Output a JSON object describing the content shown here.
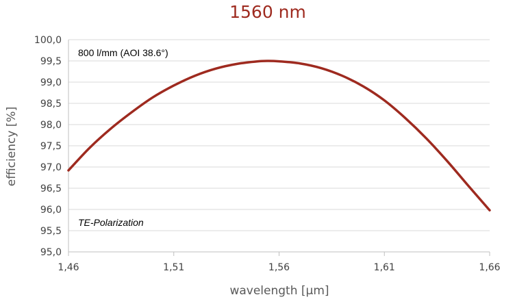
{
  "chart_data": {
    "type": "line",
    "title": "1560 nm",
    "xlabel": "wavelength [µm]",
    "ylabel": "efficiency [%]",
    "xlim": [
      1.46,
      1.66
    ],
    "ylim": [
      95.0,
      100.0
    ],
    "x_ticks": [
      1.46,
      1.51,
      1.56,
      1.61,
      1.66
    ],
    "x_tick_labels": [
      "1,46",
      "1,51",
      "1,56",
      "1,61",
      "1,66"
    ],
    "y_ticks": [
      95.0,
      95.5,
      96.0,
      96.5,
      97.0,
      97.5,
      98.0,
      98.5,
      99.0,
      99.5,
      100.0
    ],
    "y_tick_labels": [
      "95,0",
      "95,5",
      "96,0",
      "96,5",
      "97,0",
      "97,5",
      "98,0",
      "98,5",
      "99,0",
      "99,5",
      "100,0"
    ],
    "grid": "horizontal",
    "legend": "none",
    "annotations": [
      "800 l/mm (AOI 38.6°)",
      "TE-Polarization"
    ],
    "colors": {
      "series": "#9e2a1f",
      "title": "#9e2a1f",
      "grid": "#d9d9d9",
      "axis": "#bfbfbf"
    },
    "series": [
      {
        "x": [
          1.46,
          1.47,
          1.48,
          1.49,
          1.5,
          1.51,
          1.52,
          1.53,
          1.54,
          1.55,
          1.555,
          1.56,
          1.57,
          1.58,
          1.59,
          1.6,
          1.61,
          1.62,
          1.63,
          1.64,
          1.65,
          1.66
        ],
        "values": [
          96.92,
          97.45,
          97.9,
          98.29,
          98.64,
          98.92,
          99.15,
          99.32,
          99.43,
          99.49,
          99.5,
          99.49,
          99.44,
          99.33,
          99.15,
          98.9,
          98.57,
          98.15,
          97.67,
          97.13,
          96.55,
          95.98
        ]
      }
    ]
  }
}
